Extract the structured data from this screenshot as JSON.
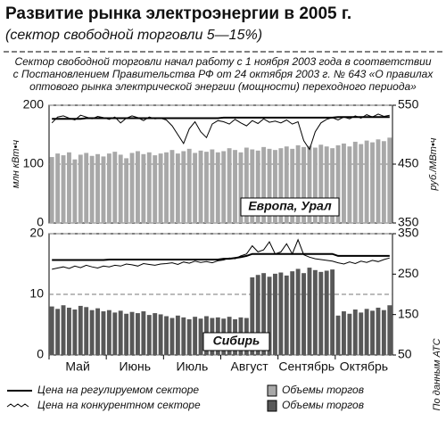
{
  "title": "Развитие рынка электроэнергии в 2005 г.",
  "subtitle": "(сектор свободной торговли 5—15%)",
  "note": [
    "Сектор свободной торговли начал работу с 1 ноября 2003 года в соответствии",
    "с Постановлением Правительства РФ от 24 октября 2003 г. № 643 «О правилах",
    "оптового рынка электрической энергии (мощности) переходного периода»"
  ],
  "source": "По данным АТС",
  "months": [
    "Май",
    "Июнь",
    "Июль",
    "Август",
    "Сентябрь",
    "Октябрь"
  ],
  "chart_data": [
    {
      "type": "bar",
      "label": "Европа, Урал",
      "ylabel": "млн кВт•ч",
      "y2label": "руб./МВт•ч",
      "ylim": [
        0,
        200
      ],
      "yticks": [
        0,
        100,
        200
      ],
      "y2lim": [
        350,
        550
      ],
      "y2ticks": [
        350,
        450,
        550
      ],
      "grid": true,
      "series": [
        {
          "name": "Объемы торгов",
          "color": "#a8a8a8",
          "values": [
            112,
            118,
            115,
            120,
            108,
            116,
            119,
            114,
            117,
            113,
            118,
            121,
            116,
            110,
            119,
            122,
            117,
            120,
            115,
            118,
            120,
            124,
            118,
            122,
            126,
            119,
            123,
            121,
            125,
            120,
            122,
            127,
            124,
            120,
            128,
            125,
            123,
            129,
            126,
            124,
            127,
            130,
            126,
            132,
            129,
            131,
            128,
            133,
            130,
            127,
            132,
            135,
            130,
            138,
            134,
            140,
            137,
            142,
            139,
            145
          ]
        },
        {
          "name": "Цена на регулируемом секторе",
          "type": "line",
          "axis": "y2",
          "color": "#000",
          "values": [
            527,
            527,
            527,
            527,
            527,
            527,
            528,
            528,
            528,
            528,
            528,
            528,
            528,
            528,
            528,
            528,
            528,
            528,
            528,
            528,
            528,
            528,
            528,
            528,
            528,
            528,
            528,
            528,
            528,
            528,
            529,
            529,
            529,
            529,
            529,
            529,
            529,
            529,
            529,
            529,
            529,
            529,
            529,
            529,
            529,
            529,
            529,
            529,
            529,
            529,
            530,
            530,
            530,
            530,
            530,
            530,
            530,
            530,
            530,
            530
          ]
        },
        {
          "name": "Цена на конкурентном секторе",
          "type": "line",
          "axis": "y2",
          "color": "#000",
          "values": [
            520,
            530,
            532,
            528,
            525,
            533,
            530,
            527,
            531,
            529,
            526,
            530,
            520,
            528,
            532,
            529,
            524,
            530,
            527,
            528,
            525,
            515,
            500,
            485,
            510,
            522,
            505,
            495,
            518,
            524,
            522,
            518,
            526,
            520,
            515,
            524,
            519,
            527,
            521,
            523,
            520,
            525,
            518,
            522,
            490,
            475,
            505,
            520,
            526,
            529,
            525,
            530,
            527,
            532,
            528,
            534,
            530,
            535,
            531,
            533
          ]
        }
      ]
    },
    {
      "type": "bar",
      "label": "Сибирь",
      "ylim": [
        0,
        20
      ],
      "yticks": [
        0,
        10,
        20
      ],
      "y2lim": [
        50,
        350
      ],
      "y2ticks": [
        50,
        150,
        250,
        350
      ],
      "grid": true,
      "series": [
        {
          "name": "Объемы торгов",
          "color": "#585858",
          "values": [
            8.0,
            7.6,
            8.2,
            7.8,
            7.5,
            8.1,
            7.9,
            7.4,
            7.7,
            7.2,
            7.4,
            7.0,
            7.3,
            6.8,
            7.1,
            6.9,
            7.2,
            6.6,
            6.9,
            6.7,
            6.4,
            6.1,
            6.5,
            6.2,
            5.9,
            6.3,
            6.0,
            6.4,
            6.1,
            6.2,
            6.0,
            6.3,
            5.9,
            6.2,
            6.1,
            12.8,
            13.2,
            13.5,
            12.9,
            13.4,
            13.6,
            13.1,
            13.8,
            14.2,
            13.5,
            14.4,
            14.0,
            13.7,
            13.9,
            14.1,
            6.5,
            7.2,
            6.8,
            7.5,
            7.0,
            7.6,
            7.3,
            7.8,
            7.4,
            8.2
          ]
        },
        {
          "name": "Цена на регулируемом секторе",
          "type": "line",
          "axis": "y2",
          "color": "#000",
          "values": [
            285,
            285,
            285,
            285,
            285,
            285,
            285,
            285,
            285,
            285,
            286,
            286,
            286,
            286,
            286,
            286,
            286,
            286,
            286,
            286,
            286,
            286,
            286,
            286,
            286,
            286,
            286,
            286,
            286,
            286,
            288,
            288,
            290,
            292,
            295,
            300,
            300,
            300,
            300,
            300,
            300,
            300,
            300,
            300,
            300,
            300,
            300,
            300,
            300,
            300,
            295,
            295,
            295,
            295,
            295,
            295,
            295,
            295,
            295,
            295
          ]
        },
        {
          "name": "Цена на конкурентном секторе",
          "type": "line",
          "axis": "y2",
          "color": "#000",
          "values": [
            262,
            265,
            268,
            264,
            270,
            266,
            272,
            268,
            265,
            270,
            268,
            272,
            270,
            275,
            273,
            270,
            276,
            274,
            272,
            275,
            276,
            278,
            274,
            280,
            277,
            282,
            279,
            281,
            278,
            283,
            285,
            290,
            288,
            295,
            300,
            320,
            305,
            310,
            330,
            300,
            305,
            325,
            300,
            335,
            298,
            292,
            288,
            286,
            284,
            282,
            278,
            275,
            280,
            276,
            282,
            279,
            284,
            281,
            286,
            290
          ]
        }
      ]
    }
  ]
}
